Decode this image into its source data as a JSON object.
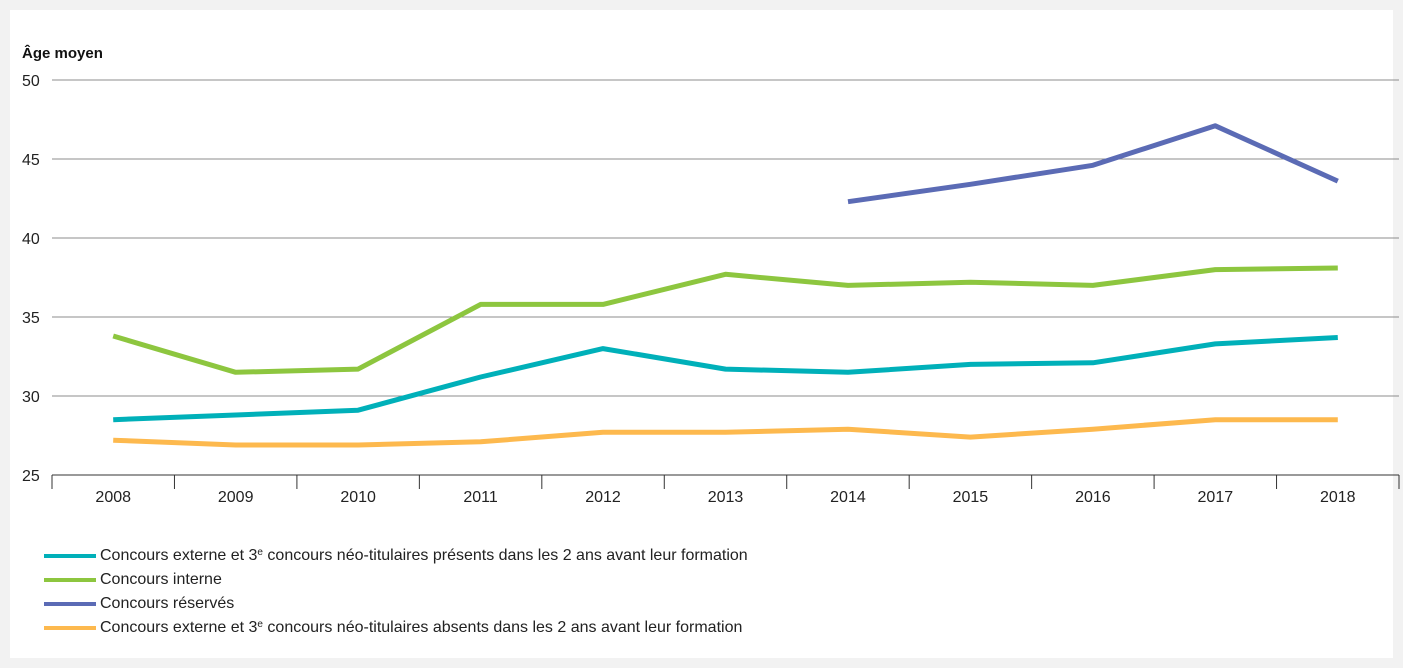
{
  "chart_data": {
    "type": "line",
    "ylabel": "Âge moyen",
    "ylim": [
      25,
      50
    ],
    "yticks": [
      25,
      30,
      35,
      40,
      45,
      50
    ],
    "x": [
      "2008",
      "2009",
      "2010",
      "2011",
      "2012",
      "2013",
      "2014",
      "2015",
      "2016",
      "2017",
      "2018"
    ],
    "grid": "horizontal",
    "legend_position": "bottom-left",
    "series": [
      {
        "name": "Concours externe et 3ᵉ concours néo-titulaires présents dans les 2 ans avant leur formation",
        "label_main": "Concours externe et 3",
        "label_sup": "e",
        "label_rest": " concours néo-titulaires présents dans les 2 ans avant leur formation",
        "color": "#00b0b9",
        "values": [
          28.5,
          28.8,
          29.1,
          31.2,
          33.0,
          31.7,
          31.5,
          32.0,
          32.1,
          33.3,
          33.7
        ]
      },
      {
        "name": "Concours interne",
        "label_main": "Concours interne",
        "label_sup": "",
        "label_rest": "",
        "color": "#8dc63f",
        "values": [
          33.8,
          31.5,
          31.7,
          35.8,
          35.8,
          37.7,
          37.0,
          37.2,
          37.0,
          38.0,
          38.1
        ]
      },
      {
        "name": "Concours réservés",
        "label_main": "Concours réservés",
        "label_sup": "",
        "label_rest": "",
        "color": "#5b6bb5",
        "values": [
          null,
          null,
          null,
          null,
          null,
          null,
          42.3,
          43.4,
          44.6,
          47.1,
          43.6
        ]
      },
      {
        "name": "Concours externe et 3ᵉ concours néo-titulaires absents dans les 2 ans avant leur formation",
        "label_main": "Concours externe et 3",
        "label_sup": "e",
        "label_rest": " concours néo-titulaires absents dans les 2 ans avant leur formation",
        "color": "#fdb94e",
        "values": [
          27.2,
          26.9,
          26.9,
          27.1,
          27.7,
          27.7,
          27.9,
          27.4,
          27.9,
          28.5,
          28.5
        ]
      }
    ]
  }
}
